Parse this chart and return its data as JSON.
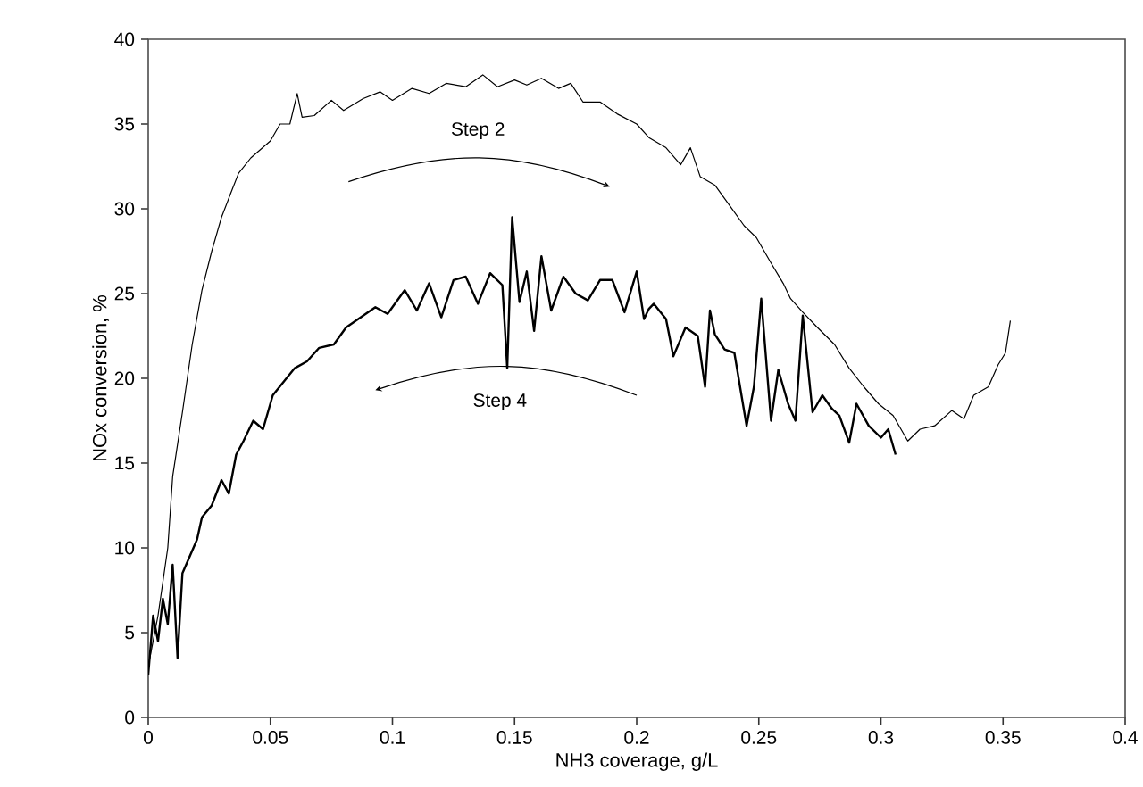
{
  "chart_data": {
    "type": "line",
    "xlabel": "NH3 coverage, g/L",
    "ylabel": "NOx conversion, %",
    "xlim": [
      0,
      0.4
    ],
    "ylim": [
      0,
      40
    ],
    "xticks": [
      0,
      0.05,
      0.1,
      0.15,
      0.2,
      0.25,
      0.3,
      0.35,
      0.4
    ],
    "yticks": [
      0,
      5,
      10,
      15,
      20,
      25,
      30,
      35,
      40
    ],
    "grid": false,
    "marker": "none",
    "line_style": "solid",
    "annotations": [
      "Step 2",
      "Step 4"
    ],
    "series": [
      {
        "color": "#000000",
        "x": [
          0,
          0.004,
          0.008,
          0.01,
          0.014,
          0.018,
          0.022,
          0.026,
          0.03,
          0.034,
          0.037,
          0.042,
          0.046,
          0.05,
          0.054,
          0.058,
          0.061,
          0.063,
          0.068,
          0.075,
          0.08,
          0.088,
          0.095,
          0.1,
          0.108,
          0.115,
          0.122,
          0.13,
          0.137,
          0.143,
          0.15,
          0.155,
          0.161,
          0.168,
          0.173,
          0.178,
          0.185,
          0.192,
          0.2,
          0.205,
          0.212,
          0.218,
          0.222,
          0.226,
          0.232,
          0.238,
          0.244,
          0.249,
          0.255,
          0.26,
          0.263,
          0.268,
          0.274,
          0.281,
          0.287,
          0.293,
          0.299,
          0.305,
          0.311,
          0.316,
          0.322,
          0.329,
          0.334,
          0.338,
          0.344,
          0.348,
          0.351,
          0.353
        ],
        "values": [
          3,
          6,
          10,
          14.2,
          18,
          22,
          25.2,
          27.5,
          29.5,
          31,
          32.1,
          33,
          33.5,
          34,
          35,
          35,
          36.8,
          35.4,
          35.5,
          36.4,
          35.8,
          36.5,
          36.9,
          36.4,
          37.1,
          36.8,
          37.4,
          37.2,
          37.9,
          37.2,
          37.6,
          37.3,
          37.7,
          37.1,
          37.4,
          36.3,
          36.3,
          35.6,
          35.0,
          34.2,
          33.6,
          32.6,
          33.6,
          31.9,
          31.4,
          30.2,
          29.0,
          28.3,
          26.8,
          25.6,
          24.7,
          23.9,
          23.0,
          22.0,
          20.6,
          19.5,
          18.5,
          17.8,
          16.3,
          17.0,
          17.2,
          18.1,
          17.6,
          19.0,
          19.5,
          20.8,
          21.5,
          23.4
        ]
      },
      {
        "color": "#000000",
        "x": [
          0,
          0.002,
          0.004,
          0.006,
          0.008,
          0.01,
          0.012,
          0.014,
          0.017,
          0.02,
          0.022,
          0.026,
          0.03,
          0.033,
          0.036,
          0.039,
          0.043,
          0.047,
          0.051,
          0.056,
          0.06,
          0.065,
          0.07,
          0.076,
          0.081,
          0.088,
          0.093,
          0.098,
          0.105,
          0.11,
          0.115,
          0.12,
          0.125,
          0.13,
          0.135,
          0.14,
          0.145,
          0.147,
          0.149,
          0.152,
          0.155,
          0.158,
          0.161,
          0.165,
          0.17,
          0.175,
          0.18,
          0.185,
          0.19,
          0.195,
          0.2,
          0.203,
          0.205,
          0.207,
          0.212,
          0.215,
          0.22,
          0.225,
          0.228,
          0.23,
          0.232,
          0.236,
          0.24,
          0.245,
          0.248,
          0.251,
          0.255,
          0.258,
          0.262,
          0.265,
          0.268,
          0.272,
          0.276,
          0.28,
          0.283,
          0.287,
          0.29,
          0.295,
          0.3,
          0.303,
          0.306
        ],
        "values": [
          2.5,
          6,
          4.5,
          7,
          5.5,
          9.0,
          3.5,
          8.5,
          9.5,
          10.5,
          11.8,
          12.5,
          14,
          13.2,
          15.5,
          16.3,
          17.5,
          17,
          19,
          19.9,
          20.6,
          21,
          21.8,
          22.0,
          23,
          23.7,
          24.2,
          23.8,
          25.2,
          24.0,
          25.6,
          23.6,
          25.8,
          26.0,
          24.4,
          26.2,
          25.5,
          20.6,
          29.5,
          24.5,
          26.3,
          22.8,
          27.2,
          24.0,
          26.0,
          25.0,
          24.6,
          25.8,
          25.8,
          23.9,
          26.3,
          23.5,
          24.1,
          24.4,
          23.5,
          21.3,
          23.0,
          22.5,
          19.5,
          24.0,
          22.6,
          21.7,
          21.5,
          17.2,
          19.5,
          24.7,
          17.5,
          20.5,
          18.5,
          17.5,
          23.7,
          18.0,
          19.0,
          18.2,
          17.8,
          16.2,
          18.5,
          17.2,
          16.5,
          17.0,
          15.5
        ]
      }
    ]
  }
}
